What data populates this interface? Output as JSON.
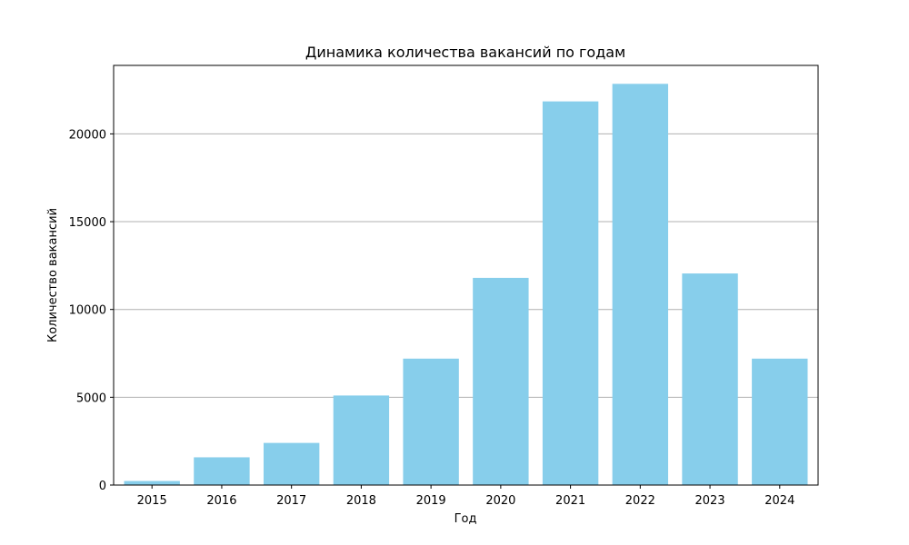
{
  "chart_data": {
    "type": "bar",
    "title": "Динамика количества вакансий по годам",
    "xlabel": "Год",
    "ylabel": "Количество вакансий",
    "categories": [
      "2015",
      "2016",
      "2017",
      "2018",
      "2019",
      "2020",
      "2021",
      "2022",
      "2023",
      "2024"
    ],
    "values": [
      230,
      1580,
      2400,
      5100,
      7200,
      11800,
      21850,
      22850,
      12050,
      7200
    ],
    "ylim": [
      0,
      23900
    ],
    "yticks": [
      0,
      5000,
      10000,
      15000,
      20000
    ],
    "ytick_labels": [
      "0",
      "5000",
      "10000",
      "15000",
      "20000"
    ],
    "grid": "y",
    "bar_color": "#87ceeb",
    "grid_color": "#b0b0b0"
  }
}
